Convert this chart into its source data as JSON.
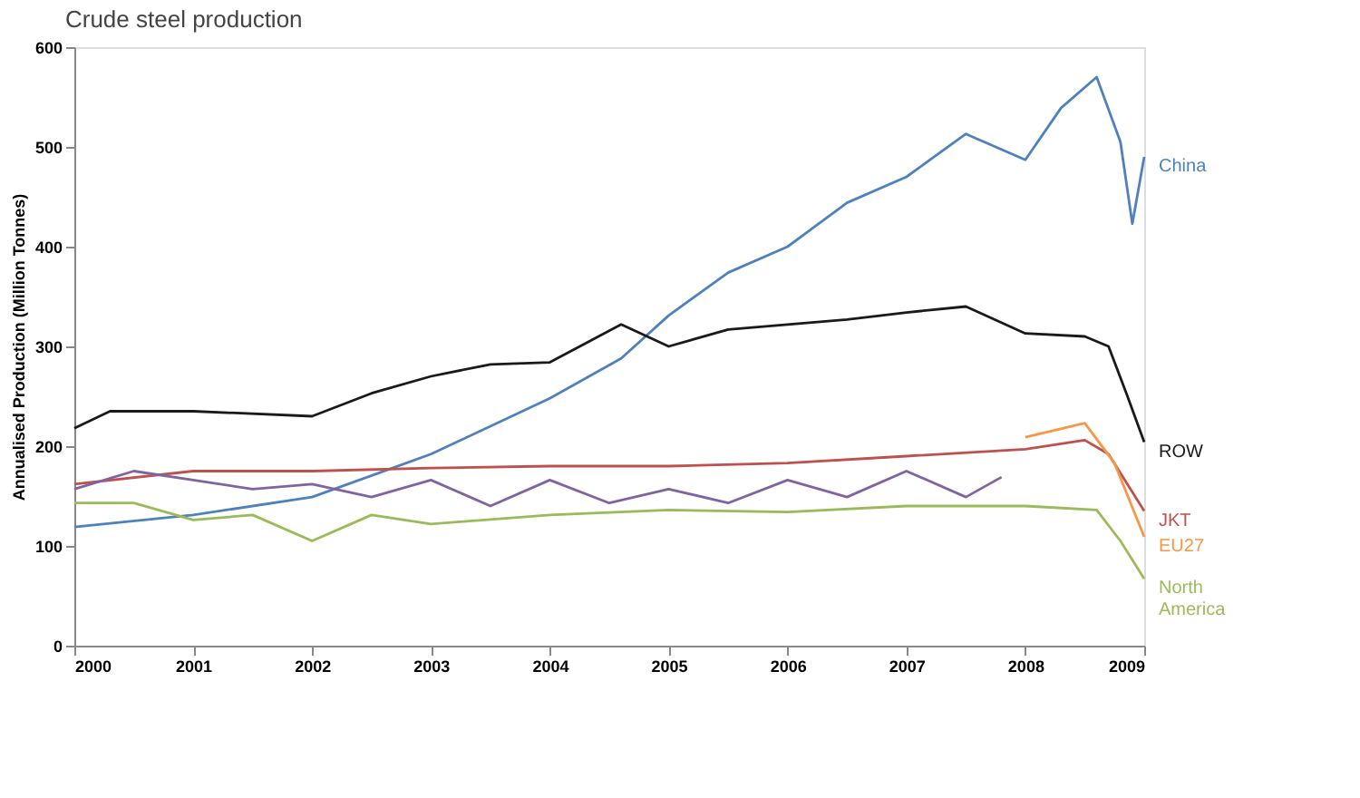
{
  "chart_data": {
    "type": "line",
    "title": "Crude steel production",
    "ylabel": "Annualised Production (Million Tonnes)",
    "xlim": [
      2000,
      2009
    ],
    "xticks": [
      2000,
      2001,
      2002,
      2003,
      2004,
      2005,
      2006,
      2007,
      2008,
      2009
    ],
    "ylim": [
      0,
      600
    ],
    "yticks": [
      0,
      100,
      200,
      300,
      400,
      500,
      600
    ],
    "grid": false,
    "legend": false,
    "marker": "none",
    "line_style": "solid",
    "series": [
      {
        "name": "China",
        "color": "#4f81bd",
        "x": [
          2000,
          2001,
          2002,
          2003,
          2004,
          2004.6,
          2005,
          2005.5,
          2006,
          2006.5,
          2007,
          2007.5,
          2008,
          2008.3,
          2008.6,
          2008.8,
          2008.9,
          2009
        ],
        "values": [
          119,
          131,
          149,
          192,
          248,
          288,
          331,
          374,
          400,
          444,
          470,
          513,
          487,
          539,
          570,
          505,
          423,
          490
        ]
      },
      {
        "name": "ROW",
        "color": "#1a1a1a",
        "x": [
          2000,
          2000.3,
          2001,
          2002,
          2002.5,
          2003,
          2003.5,
          2004,
          2004.6,
          2005,
          2005.5,
          2006,
          2006.5,
          2007,
          2007.5,
          2008,
          2008.5,
          2008.7,
          2008.85,
          2009
        ],
        "values": [
          218,
          235,
          235,
          230,
          253,
          270,
          282,
          284,
          322,
          300,
          317,
          322,
          327,
          334,
          340,
          313,
          310,
          300,
          253,
          204
        ]
      },
      {
        "name": "JKT",
        "color": "#c0504d",
        "x": [
          2000,
          2001,
          2002,
          2003,
          2004,
          2005,
          2006,
          2007,
          2008,
          2008.5,
          2008.7,
          2009
        ],
        "values": [
          162,
          175,
          175,
          178,
          180,
          180,
          183,
          190,
          197,
          206,
          192,
          135
        ]
      },
      {
        "name": "EU27",
        "color": "#f79646",
        "x": [
          2008,
          2008.5,
          2008.75,
          2009
        ],
        "values": [
          209,
          223,
          183,
          109
        ]
      },
      {
        "color": "#8064a2",
        "x": [
          2000,
          2000.5,
          2001,
          2001.5,
          2002,
          2002.5,
          2003,
          2003.5,
          2004,
          2004.5,
          2005,
          2005.5,
          2006,
          2006.5,
          2007,
          2007.5,
          2007.8
        ],
        "values": [
          157,
          175,
          166,
          157,
          162,
          149,
          166,
          140,
          166,
          143,
          157,
          143,
          166,
          149,
          175,
          149,
          169
        ]
      },
      {
        "name": "North America",
        "color": "#9bbb59",
        "x": [
          2000,
          2000.5,
          2001,
          2001.5,
          2002,
          2002.5,
          2003,
          2004,
          2005,
          2006,
          2007,
          2008,
          2008.6,
          2008.8,
          2009
        ],
        "values": [
          143,
          143,
          126,
          131,
          105,
          131,
          122,
          131,
          136,
          134,
          140,
          140,
          136,
          105,
          67
        ]
      }
    ]
  }
}
